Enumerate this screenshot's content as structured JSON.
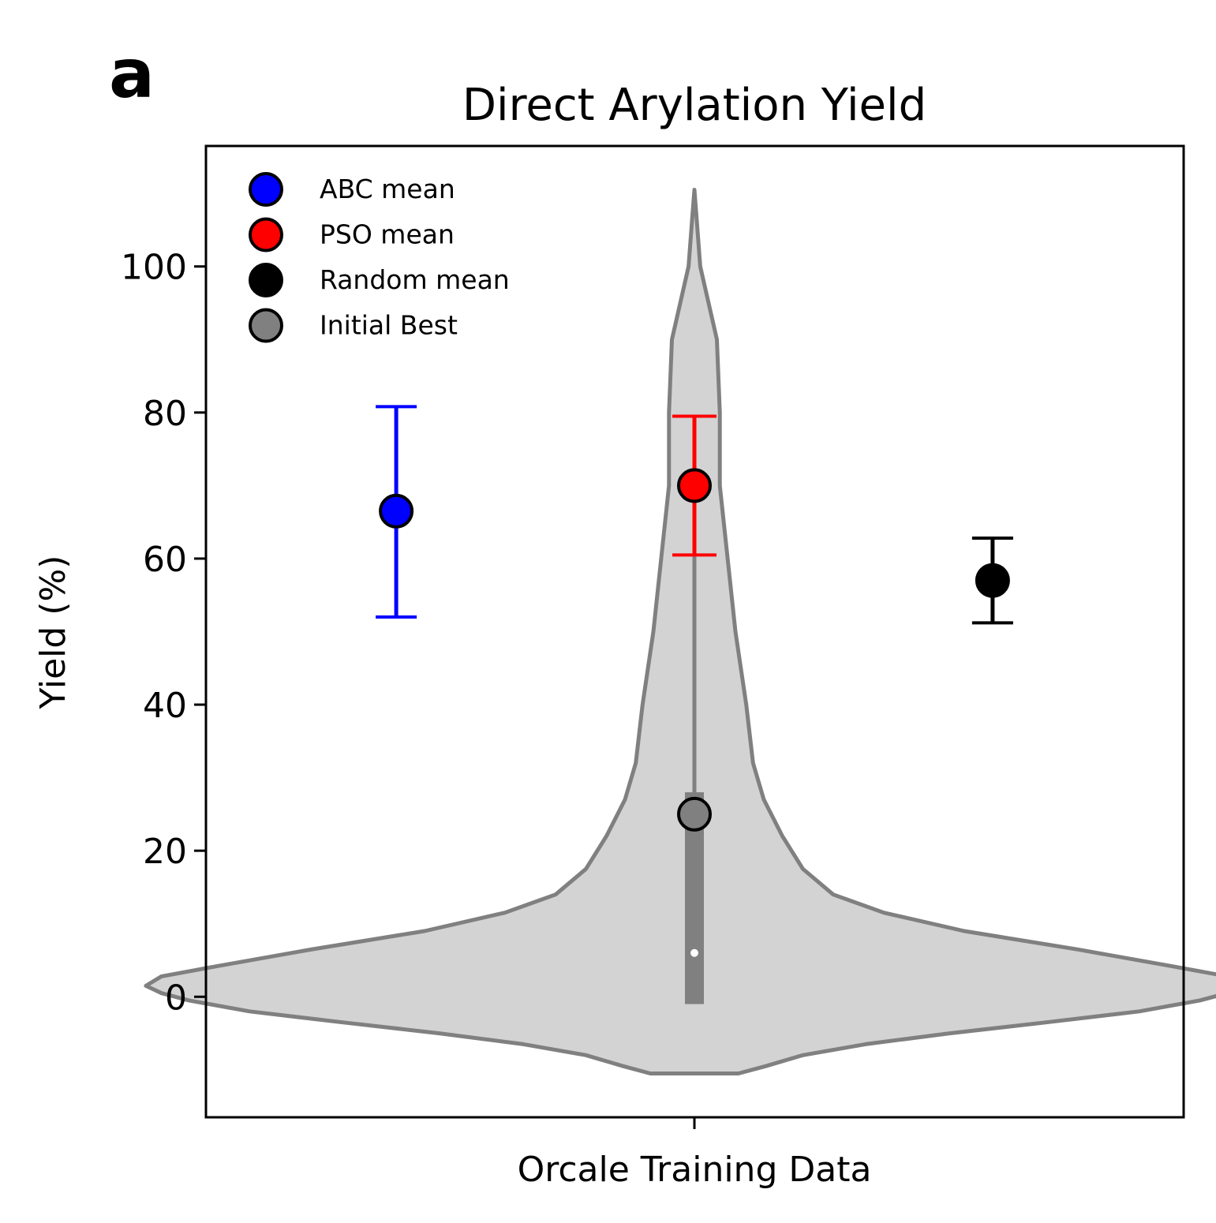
{
  "panel_label": "a",
  "chart_data": {
    "type": "violin",
    "title": "Direct Arylation Yield",
    "xlabel": "Orcale Training Data",
    "ylabel": "Yield (%)",
    "ylim": [
      -16.5,
      116.5
    ],
    "yticks": [
      0,
      20,
      40,
      60,
      80,
      100
    ],
    "xticks": [
      ""
    ],
    "legend": {
      "position": "top-left",
      "entries": [
        {
          "label": "ABC mean",
          "color": "#0000ff"
        },
        {
          "label": "PSO mean",
          "color": "#ff0000"
        },
        {
          "label": "Random mean",
          "color": "#000000"
        },
        {
          "label": "Initial Best",
          "color": "#808080"
        }
      ]
    },
    "violin": {
      "fill": "#d3d3d3",
      "edge": "#808080",
      "y_min": -10.5,
      "y_max": 110.5,
      "quartiles": [
        -1,
        28
      ],
      "median": 6,
      "whisker": [
        -1,
        63
      ],
      "density_profile": [
        {
          "y": -10.5,
          "w": 0.045
        },
        {
          "y": -9.5,
          "w": 0.073
        },
        {
          "y": -8.0,
          "w": 0.111
        },
        {
          "y": -6.5,
          "w": 0.175
        },
        {
          "y": -5.0,
          "w": 0.261
        },
        {
          "y": -3.5,
          "w": 0.36
        },
        {
          "y": -2.0,
          "w": 0.455
        },
        {
          "y": -0.5,
          "w": 0.517
        },
        {
          "y": 0.5,
          "w": 0.545
        },
        {
          "y": 1.5,
          "w": 0.561
        },
        {
          "y": 2.8,
          "w": 0.545
        },
        {
          "y": 4.2,
          "w": 0.488
        },
        {
          "y": 6.5,
          "w": 0.391
        },
        {
          "y": 9.0,
          "w": 0.276
        },
        {
          "y": 11.5,
          "w": 0.194
        },
        {
          "y": 14.0,
          "w": 0.142
        },
        {
          "y": 17.5,
          "w": 0.111
        },
        {
          "y": 22.0,
          "w": 0.09
        },
        {
          "y": 27.0,
          "w": 0.071
        },
        {
          "y": 32.0,
          "w": 0.06
        },
        {
          "y": 40.0,
          "w": 0.053
        },
        {
          "y": 50.0,
          "w": 0.042
        },
        {
          "y": 60.0,
          "w": 0.034
        },
        {
          "y": 70.0,
          "w": 0.026
        },
        {
          "y": 80.0,
          "w": 0.026
        },
        {
          "y": 90.0,
          "w": 0.023
        },
        {
          "y": 100.0,
          "w": 0.006
        },
        {
          "y": 107.0,
          "w": 0.002
        },
        {
          "y": 110.5,
          "w": 0.0
        }
      ]
    },
    "series": [
      {
        "name": "ABC mean",
        "x": -0.305,
        "mean": 66.5,
        "error": [
          52.0,
          80.8
        ],
        "color": "#0000ff"
      },
      {
        "name": "PSO mean",
        "x": 0.0,
        "mean": 70.0,
        "error": [
          60.5,
          79.5
        ],
        "color": "#ff0000"
      },
      {
        "name": "Random mean",
        "x": 0.305,
        "mean": 57.0,
        "error": [
          51.2,
          62.8
        ],
        "color": "#000000"
      },
      {
        "name": "Initial Best",
        "x": 0.0,
        "value": 25.0,
        "color": "#808080"
      }
    ]
  }
}
